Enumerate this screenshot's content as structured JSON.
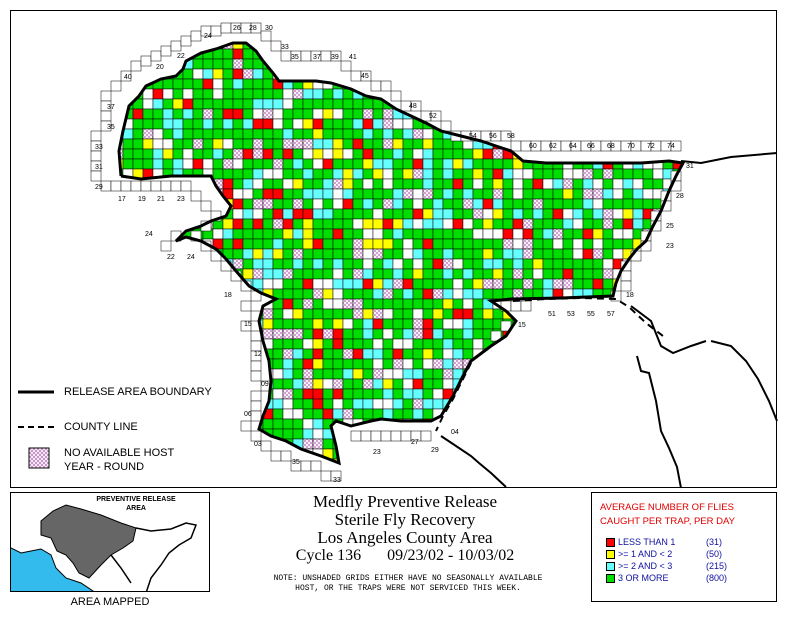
{
  "colors": {
    "red": "#ff0000",
    "yellow": "#ffff00",
    "cyan": "#66ffff",
    "green": "#00dd00",
    "hatch": "#c080c0",
    "inset_ocean": "#33bbee",
    "inset_area": "#666666"
  },
  "grid_labels": {
    "top": [
      "24",
      "26",
      "28",
      "30",
      "33",
      "35",
      "37",
      "39",
      "41",
      "45",
      "48",
      "52",
      "54",
      "56",
      "58",
      "60",
      "62",
      "64",
      "66",
      "68",
      "70",
      "72",
      "74",
      "20",
      "22"
    ],
    "left": [
      "40",
      "37",
      "35",
      "33",
      "31",
      "29",
      "17",
      "19",
      "21",
      "23",
      "24",
      "22",
      "24",
      "18",
      "15",
      "12",
      "09",
      "06",
      "03"
    ],
    "right": [
      "31",
      "28",
      "25",
      "23",
      "18",
      "15",
      "04"
    ],
    "bottom": [
      "51",
      "53",
      "55",
      "57",
      "35",
      "33",
      "23",
      "27",
      "29"
    ]
  },
  "legend_left": {
    "release_boundary": "RELEASE AREA BOUNDARY",
    "county_line": "COUNTY LINE",
    "no_host_line1": "NO AVAILABLE HOST",
    "no_host_line2": "YEAR - ROUND"
  },
  "inset": {
    "header_line1": "PREVENTIVE RELEASE",
    "header_line2": "AREA",
    "caption": "AREA MAPPED"
  },
  "titles": {
    "line1": "Medfly Preventive Release",
    "line2": "Sterile Fly Recovery",
    "line3": "Los Angeles County Area",
    "cycle": "Cycle 136",
    "dates": "09/23/02 - 10/03/02"
  },
  "note": {
    "line1": "NOTE: UNSHADED GRIDS EITHER HAVE NO SEASONALLY AVAILABLE",
    "line2": "HOST, OR THE TRAPS WERE NOT SERVICED THIS WEEK."
  },
  "key": {
    "title_line1": "AVERAGE NUMBER OF FLIES",
    "title_line2": "CAUGHT PER TRAP, PER DAY",
    "items": [
      {
        "label": "LESS THAN 1",
        "count": "(31)",
        "color": "#ff0000"
      },
      {
        "label": ">= 1 AND < 2",
        "count": "(50)",
        "color": "#ffff00"
      },
      {
        "label": ">= 2 AND < 3",
        "count": "(215)",
        "color": "#66ffff"
      },
      {
        "label": "3 OR MORE",
        "count": "(800)",
        "color": "#00dd00"
      }
    ]
  }
}
